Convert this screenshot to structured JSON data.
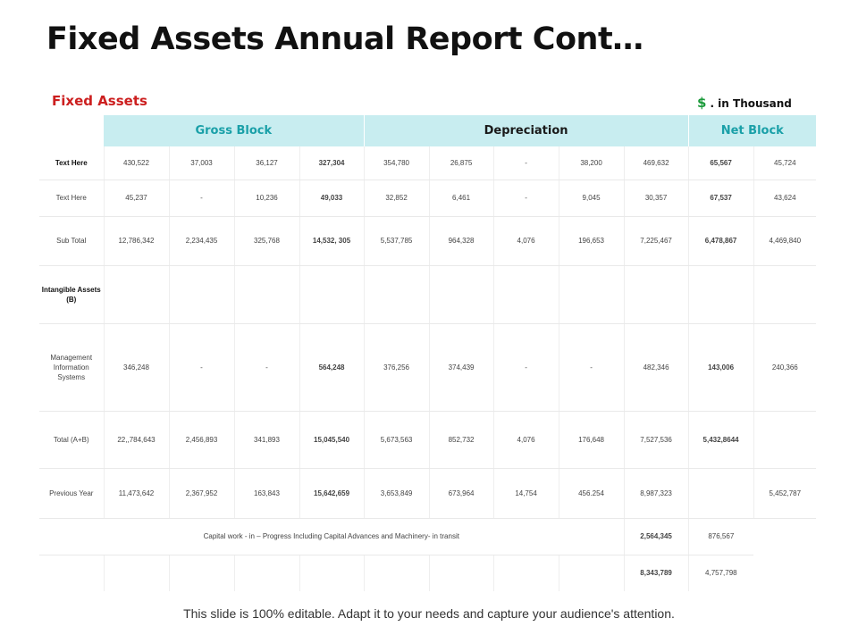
{
  "title": "Fixed Assets Annual Report Cont…",
  "section_label": "Fixed Assets",
  "unit_note": {
    "symbol": "$",
    "text": ". in Thousand"
  },
  "groups": {
    "gross_block": "Gross Block",
    "depreciation": "Depreciation",
    "net_block": "Net Block"
  },
  "rows": {
    "r1": {
      "label": "Text Here",
      "values": [
        "430,522",
        "37,003",
        "36,127",
        "327,304",
        "354,780",
        "26,875",
        "-",
        "38,200",
        "469,632",
        "65,567",
        "45,724"
      ]
    },
    "r2": {
      "label": "Text Here",
      "values": [
        "45,237",
        "-",
        "10,236",
        "49,033",
        "32,852",
        "6,461",
        "-",
        "9,045",
        "30,357",
        "67,537",
        "43,624"
      ]
    },
    "r3": {
      "label": "Sub Total",
      "values": [
        "12,786,342",
        "2,234,435",
        "325,768",
        "14,532, 305",
        "5,537,785",
        "964,328",
        "4,076",
        "196,653",
        "7,225,467",
        "6,478,867",
        "4,469,840"
      ]
    },
    "r4": {
      "label": "Intangible Assets (B)"
    },
    "r5": {
      "label": "Management Information Systems",
      "values": [
        "346,248",
        "-",
        "-",
        "564,248",
        "376,256",
        "374,439",
        "-",
        "-",
        "482,346",
        "143,006",
        "240,366"
      ]
    },
    "r6": {
      "label": "Total (A+B)",
      "values": [
        "22,,784,643",
        "2,456,893",
        "341,893",
        "15,045,540",
        "5,673,563",
        "852,732",
        "4,076",
        "176,648",
        "7,527,536",
        "5,432,8644"
      ]
    },
    "r7": {
      "label": "Previous Year",
      "values": [
        "11,473,642",
        "2,367,952",
        "163,843",
        "15,642,659",
        "3,653,849",
        "673,964",
        "14,754",
        "456.254",
        "8,987,323",
        "5,452,787"
      ]
    },
    "r8": {
      "note": "Capital work - in – Progress Including Capital Advances and Machinery- in transit",
      "values": [
        "2,564,345",
        "876,567"
      ]
    },
    "r9": {
      "values": [
        "8,343,789",
        "4,757,798"
      ]
    }
  },
  "footer": "This slide is 100% editable. Adapt it to your needs and capture your audience's attention.",
  "colors": {
    "title": "#111111",
    "section_label": "#cc1f1f",
    "dollar": "#1a9a3a",
    "header_bg": "#c8edf0",
    "header_accent": "#1aa0a8"
  }
}
